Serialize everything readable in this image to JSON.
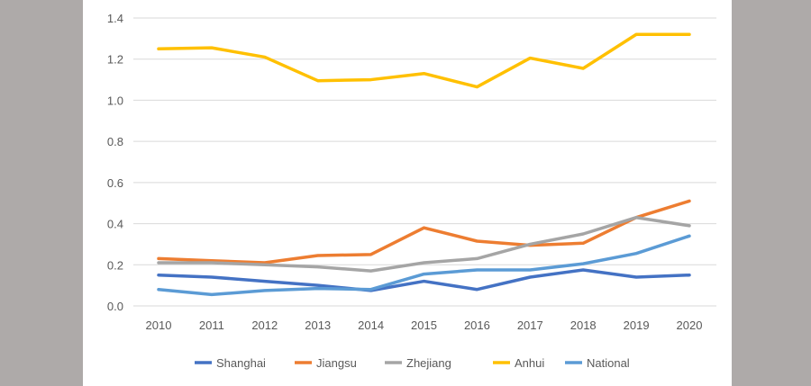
{
  "chart_data": {
    "type": "line",
    "title": "",
    "xlabel": "",
    "ylabel": "",
    "categories": [
      "2010",
      "2011",
      "2012",
      "2013",
      "2014",
      "2015",
      "2016",
      "2017",
      "2018",
      "2019",
      "2020"
    ],
    "ylim": [
      0,
      1.4
    ],
    "yticks": [
      "0.0",
      "0.2",
      "0.4",
      "0.6",
      "0.8",
      "1.0",
      "1.2",
      "1.4"
    ],
    "grid": true,
    "legend_position": "bottom",
    "series": [
      {
        "name": "Shanghai",
        "color": "#4472C4",
        "values": [
          0.15,
          0.14,
          0.12,
          0.1,
          0.075,
          0.12,
          0.08,
          0.14,
          0.175,
          0.14,
          0.15
        ]
      },
      {
        "name": "Jiangsu",
        "color": "#ED7D31",
        "values": [
          0.23,
          0.22,
          0.21,
          0.245,
          0.25,
          0.38,
          0.315,
          0.295,
          0.305,
          0.43,
          0.51
        ]
      },
      {
        "name": "Zhejiang",
        "color": "#A5A5A5",
        "values": [
          0.21,
          0.21,
          0.2,
          0.19,
          0.17,
          0.21,
          0.23,
          0.3,
          0.35,
          0.43,
          0.39
        ]
      },
      {
        "name": "Anhui",
        "color": "#FFC000",
        "values": [
          1.25,
          1.255,
          1.21,
          1.095,
          1.1,
          1.13,
          1.065,
          1.205,
          1.155,
          1.32,
          1.32
        ]
      },
      {
        "name": "National",
        "color": "#5B9BD5",
        "values": [
          0.08,
          0.055,
          0.075,
          0.085,
          0.08,
          0.155,
          0.175,
          0.175,
          0.205,
          0.255,
          0.34
        ]
      }
    ]
  }
}
